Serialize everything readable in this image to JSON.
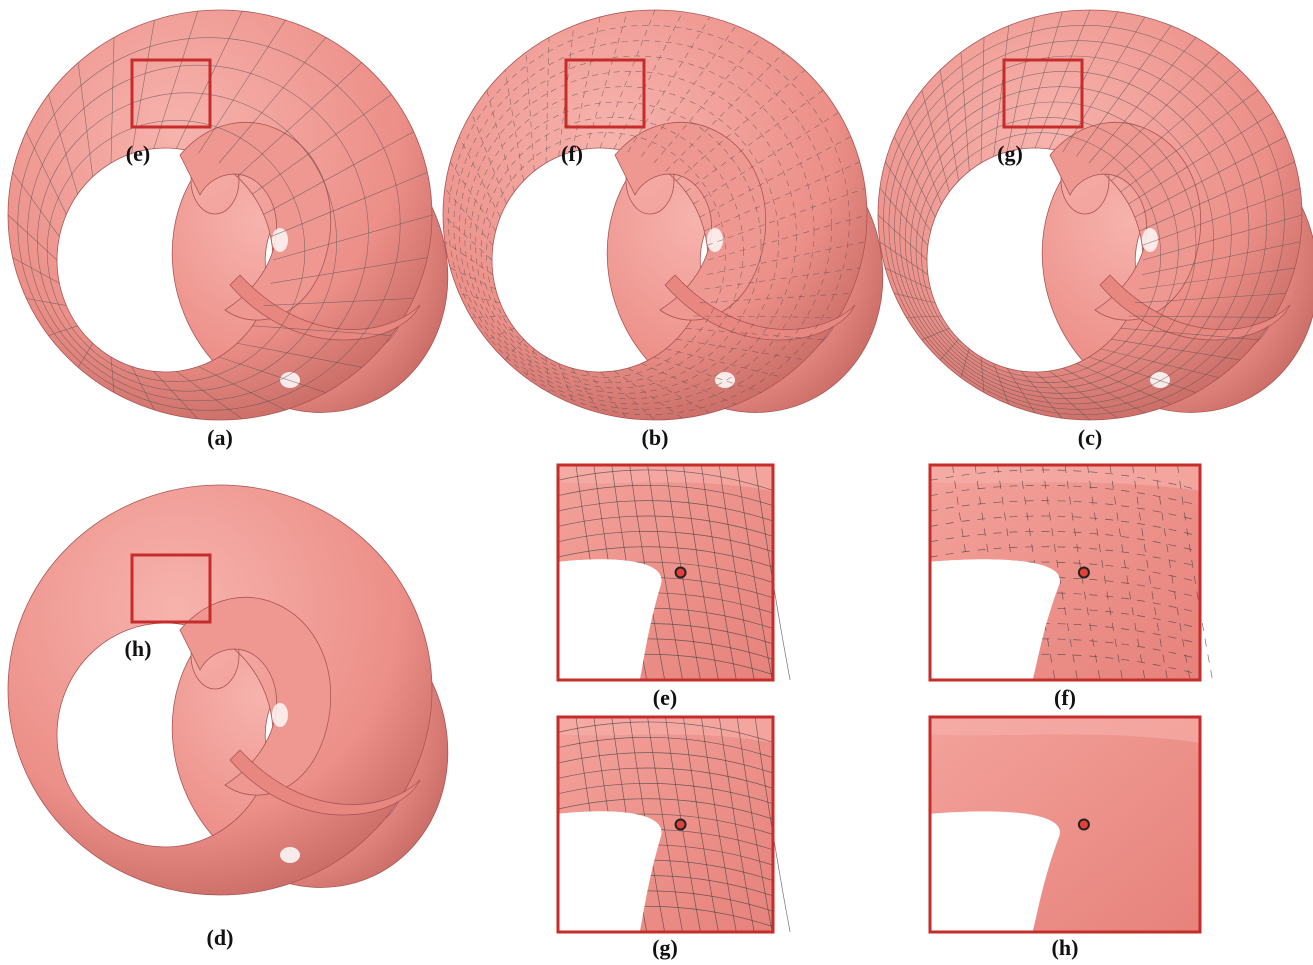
{
  "panels": [
    {
      "label": "(a)",
      "inset": "(e)"
    },
    {
      "label": "(b)",
      "inset": "(f)"
    },
    {
      "label": "(c)",
      "inset": "(g)"
    },
    {
      "label": "(d)",
      "inset": "(h)"
    },
    {
      "label": "(e)"
    },
    {
      "label": "(f)"
    },
    {
      "label": "(g)"
    },
    {
      "label": "(h)"
    }
  ]
}
